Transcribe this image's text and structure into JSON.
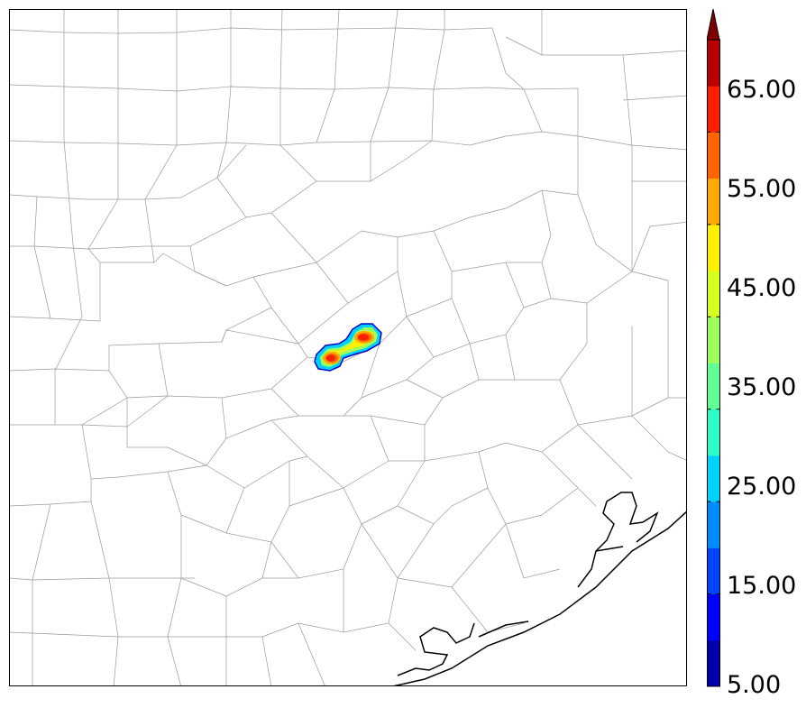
{
  "colorbar": {
    "labels": [
      "5.00",
      "15.00",
      "25.00",
      "35.00",
      "45.00",
      "55.00",
      "65.00"
    ],
    "levels": [
      5,
      10,
      15,
      20,
      25,
      30,
      35,
      40,
      45,
      50,
      55,
      60,
      65,
      70
    ],
    "colors": [
      "#0000aa",
      "#0000ff",
      "#0046ff",
      "#008cff",
      "#00d2ff",
      "#2cffca",
      "#60ff96",
      "#9cff5a",
      "#d6ff20",
      "#fff000",
      "#ffaa00",
      "#ff6400",
      "#ff1e00",
      "#b80000"
    ],
    "extend": "max",
    "extend_color": "#800000"
  },
  "map": {
    "region": "southeast Texas",
    "county_line_color": "#9a9a9a",
    "coastline_color": "#000000"
  }
}
